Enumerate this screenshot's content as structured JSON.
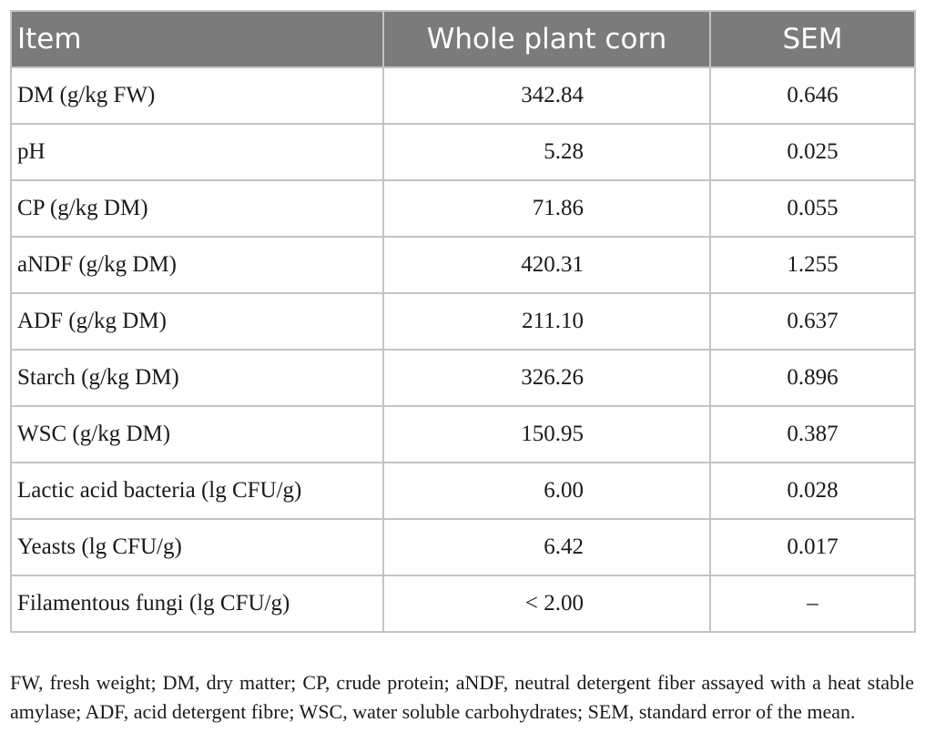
{
  "table": {
    "headers": {
      "item": "Item",
      "whole_plant_corn": "Whole plant corn",
      "sem": "SEM"
    },
    "rows": [
      {
        "item": "DM (g/kg FW)",
        "value": "342.84",
        "sem": "0.646"
      },
      {
        "item": "pH",
        "value": "5.28",
        "sem": "0.025"
      },
      {
        "item": "CP (g/kg DM)",
        "value": "71.86",
        "sem": "0.055"
      },
      {
        "item": "aNDF (g/kg DM)",
        "value": "420.31",
        "sem": "1.255"
      },
      {
        "item": "ADF (g/kg DM)",
        "value": "211.10",
        "sem": "0.637"
      },
      {
        "item": "Starch (g/kg DM)",
        "value": "326.26",
        "sem": "0.896"
      },
      {
        "item": "WSC (g/kg DM)",
        "value": "150.95",
        "sem": "0.387"
      },
      {
        "item": "Lactic acid bacteria (lg CFU/g)",
        "value": "6.00",
        "sem": "0.028"
      },
      {
        "item": "Yeasts (lg CFU/g)",
        "value": "6.42",
        "sem": "0.017"
      },
      {
        "item": "Filamentous fungi (lg CFU/g)",
        "value": "< 2.00",
        "sem": "–"
      }
    ]
  },
  "footnote": "FW, fresh weight; DM, dry matter; CP, crude protein; aNDF, neutral detergent fiber assayed with a heat stable amylase; ADF, acid detergent fibre; WSC, water soluble carbohydrates; SEM, standard error of the mean."
}
